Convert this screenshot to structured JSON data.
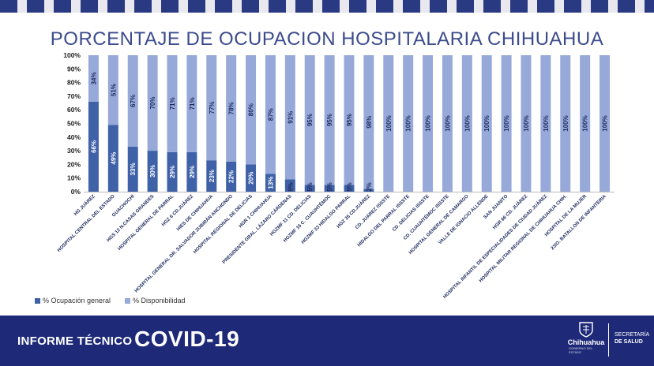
{
  "chart_data": {
    "type": "stacked-bar",
    "title": "PORCENTAJE DE OCUPACION HOSPITALARIA CHIHUAHUA",
    "ylim": [
      0,
      100
    ],
    "yticks": [
      "0%",
      "10%",
      "20%",
      "30%",
      "40%",
      "50%",
      "60%",
      "70%",
      "80%",
      "90%",
      "100%"
    ],
    "categories": [
      "HG JUÁREZ",
      "HOSPITAL CENTRAL DEL ESTADO",
      "GUACHOCHI",
      "HGS 12 N.CASAS GRANDES",
      "HOSPITAL GENERAL DE PARRAL",
      "HGZ 6 CD.JUÁREZ",
      "HIES DE CHIHUAHUA",
      "HOSPITAL GENERAL DR. SALVADOR ZUBIRÁN ANCHONDO",
      "HOSPITAL REGIONAL DE DELICIAS",
      "HGR 1 CHIHUAHUA",
      "PRESIDENTE GRAL. LÁZARO CÁRDENAS",
      "HGZMF 11 CD. DELICIAS",
      "HGZMF 16 C. CUAUHTÉMOC",
      "HGZMF 23 HIDALGO PARRAL",
      "HGZ 35 CD.JUÁREZ",
      "CD. JUÁREZ ISSSTE",
      "HIDALGO DEL PARRAL ISSSTE",
      "CD. DELICIAS ISSSTE",
      "CD. CUAUHTÉMOC ISSSTE",
      "HOSPITAL GENERAL DE CAMARGO",
      "VALLE DE IGNACIO ALLENDE",
      "SAN JUANITO",
      "HGR 66 CD. JUÁREZ",
      "HOSPITAL INFANTIL DE ESPECIALIDADES DE CIUDAD JUÁREZ",
      "HOSPITAL MILITAR REGIONAL DE CHIHUAHUA CHIH.",
      "HOSPITAL DE LA MUJER",
      "23/O. BATALLON DE INFANTERIA"
    ],
    "series": [
      {
        "name": "% Ocupación general",
        "color": "#3f61a8",
        "values": [
          66,
          49,
          33,
          30,
          29,
          29,
          23,
          22,
          20,
          13,
          9,
          5,
          5,
          5,
          2,
          0,
          0,
          0,
          0,
          0,
          0,
          0,
          0,
          0,
          0,
          0,
          0
        ],
        "labels": [
          "66%",
          "49%",
          "33%",
          "30%",
          "29%",
          "29%",
          "23%",
          "22%",
          "20%",
          "13%",
          "9%",
          "5%",
          "5%",
          "5%",
          "2%",
          "",
          "",
          "",
          "",
          "",
          "",
          "",
          "",
          "",
          "",
          "",
          ""
        ]
      },
      {
        "name": "% Disponibilidad",
        "color": "#97a9d9",
        "values": [
          34,
          51,
          67,
          70,
          71,
          71,
          77,
          78,
          80,
          87,
          91,
          95,
          95,
          95,
          98,
          100,
          100,
          100,
          100,
          100,
          100,
          100,
          100,
          100,
          100,
          100,
          100
        ],
        "labels": [
          "34%",
          "51%",
          "67%",
          "70%",
          "71%",
          "71%",
          "77%",
          "78%",
          "80%",
          "87%",
          "91%",
          "95%",
          "95%",
          "95%",
          "98%",
          "100%",
          "100%",
          "100%",
          "100%",
          "100%",
          "100%",
          "100%",
          "100%",
          "100%",
          "100%",
          "100%",
          "100%"
        ]
      }
    ],
    "legend": "bottom-left"
  },
  "legend": {
    "occupancy": "% Ocupación general",
    "availability": "% Disponibilidad"
  },
  "footer": {
    "label": "INFORME TÉCNICO",
    "headline": "COVID-19",
    "brand": "Chihuahua",
    "brand_sub": "GOBIERNO DEL ESTADO",
    "dept_line1": "SECRETARÍA",
    "dept_line2": "DE SALUD",
    "color": "#1e2a78"
  }
}
